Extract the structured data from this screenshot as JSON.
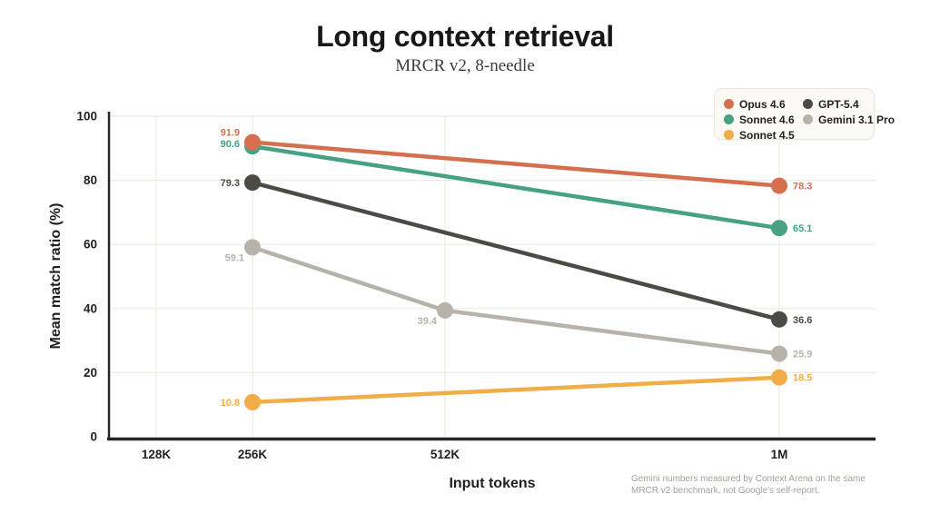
{
  "header": {
    "title": "Long context retrieval",
    "subtitle": "MRCR v2, 8-needle"
  },
  "chart_data": {
    "type": "line",
    "title": "Long context retrieval",
    "subtitle": "MRCR v2, 8-needle",
    "xlabel": "Input tokens",
    "ylabel": "Mean match ratio (%)",
    "categories": [
      "128K",
      "256K",
      "512K",
      "1M"
    ],
    "yticks": [
      0,
      20,
      40,
      60,
      80,
      100
    ],
    "ylim": [
      0,
      100
    ],
    "grid": true,
    "legend_position": "top-right",
    "legend_order": [
      "Opus 4.6",
      "Sonnet 4.6",
      "Sonnet 4.5",
      "GPT-5.4",
      "Gemini 3.1 Pro"
    ],
    "series": [
      {
        "name": "Opus 4.6",
        "color": "#d5704f",
        "points": [
          {
            "x": "256K",
            "y": 91.9
          },
          {
            "x": "1M",
            "y": 78.3
          }
        ]
      },
      {
        "name": "Sonnet 4.6",
        "color": "#47a183",
        "points": [
          {
            "x": "256K",
            "y": 90.6
          },
          {
            "x": "1M",
            "y": 65.1
          }
        ]
      },
      {
        "name": "Sonnet 4.5",
        "color": "#f0ad49",
        "points": [
          {
            "x": "256K",
            "y": 10.8
          },
          {
            "x": "1M",
            "y": 18.5
          }
        ]
      },
      {
        "name": "GPT-5.4",
        "color": "#4b4a45",
        "points": [
          {
            "x": "256K",
            "y": 79.3
          },
          {
            "x": "1M",
            "y": 36.6
          }
        ]
      },
      {
        "name": "Gemini 3.1 Pro",
        "color": "#b7b3ab",
        "points": [
          {
            "x": "256K",
            "y": 59.1
          },
          {
            "x": "512K",
            "y": 39.4
          },
          {
            "x": "1M",
            "y": 25.9
          }
        ]
      }
    ],
    "footnote": "Gemini numbers measured by Context Arena on the same MRCR v2 benchmark, not Google's self-report."
  }
}
